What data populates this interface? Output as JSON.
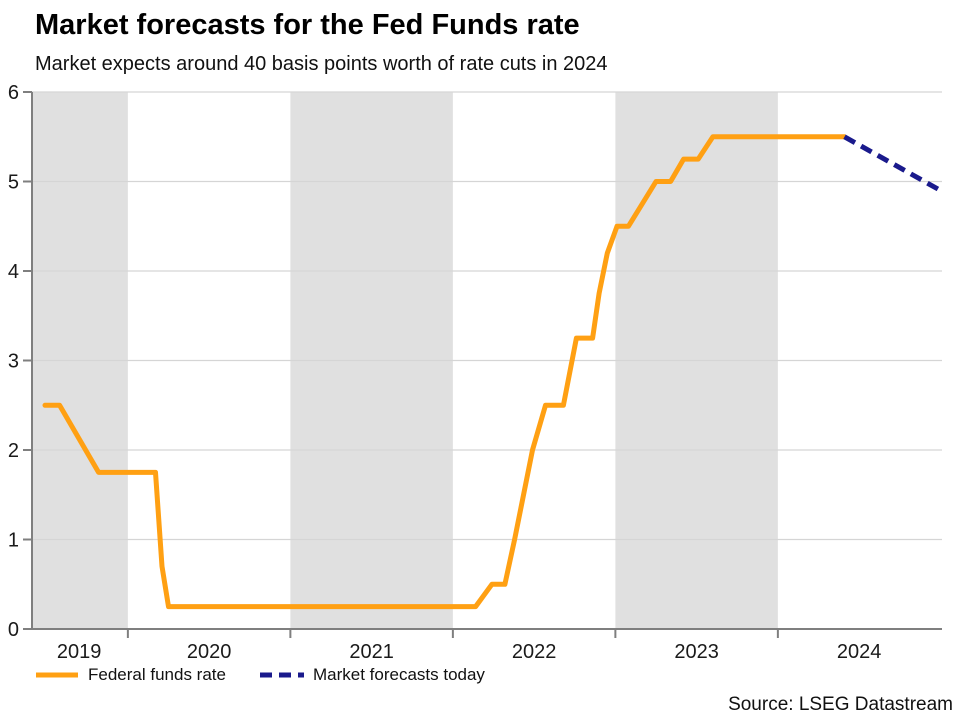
{
  "header": {
    "title": "Market forecasts for the Fed Funds rate",
    "subtitle": "Market expects around 40 basis points worth of rate cuts in 2024"
  },
  "legend": {
    "items": [
      {
        "label": "Federal funds rate",
        "color": "#FFA013",
        "dash": "none"
      },
      {
        "label": "Market forecasts today",
        "color": "#1A1A8C",
        "dash": "12 7"
      }
    ]
  },
  "footer": {
    "source": "Source: LSEG Datastream"
  },
  "chart_data": {
    "type": "line",
    "title": "Market forecasts for the Fed Funds rate",
    "subtitle": "Market expects around 40 basis points worth of rate cuts in 2024",
    "xlabel": "",
    "ylabel": "",
    "xlim": [
      2019.41,
      2025.01
    ],
    "ylim": [
      0,
      6
    ],
    "yticks": [
      0,
      1,
      2,
      3,
      4,
      5,
      6
    ],
    "xticks": [
      2020,
      2021,
      2022,
      2023,
      2024
    ],
    "year_labels": [
      {
        "label": "2019",
        "x": 2019.7
      },
      {
        "label": "2020",
        "x": 2020.5
      },
      {
        "label": "2021",
        "x": 2021.5
      },
      {
        "label": "2022",
        "x": 2022.5
      },
      {
        "label": "2023",
        "x": 2023.5
      },
      {
        "label": "2024",
        "x": 2024.5
      }
    ],
    "shaded_bands": [
      [
        2019.41,
        2020
      ],
      [
        2021,
        2022
      ],
      [
        2023,
        2024
      ]
    ],
    "grid": true,
    "legend_position": "bottom-left",
    "colors": {
      "band": "#E0E0E0",
      "grid": "#D5D5D5",
      "axis": "#7F7F7F",
      "tick_label": "#1A1A1A"
    },
    "series": [
      {
        "name": "Federal funds rate",
        "color": "#FFA013",
        "style": "solid",
        "dash": "",
        "width": 5,
        "points": [
          [
            2019.49,
            2.5
          ],
          [
            2019.58,
            2.5
          ],
          [
            2019.82,
            1.75
          ],
          [
            2020.17,
            1.75
          ],
          [
            2020.21,
            0.7
          ],
          [
            2020.25,
            0.25
          ],
          [
            2022.14,
            0.25
          ],
          [
            2022.24,
            0.5
          ],
          [
            2022.32,
            0.5
          ],
          [
            2022.38,
            1.0
          ],
          [
            2022.49,
            2.0
          ],
          [
            2022.57,
            2.5
          ],
          [
            2022.68,
            2.5
          ],
          [
            2022.76,
            3.25
          ],
          [
            2022.86,
            3.25
          ],
          [
            2022.9,
            3.75
          ],
          [
            2022.95,
            4.2
          ],
          [
            2023.01,
            4.5
          ],
          [
            2023.08,
            4.5
          ],
          [
            2023.25,
            5.0
          ],
          [
            2023.34,
            5.0
          ],
          [
            2023.42,
            5.25
          ],
          [
            2023.51,
            5.25
          ],
          [
            2023.6,
            5.5
          ],
          [
            2024.41,
            5.5
          ]
        ]
      },
      {
        "name": "Market forecasts today",
        "color": "#1A1A8C",
        "style": "dashed",
        "dash": "12 7",
        "width": 5,
        "points": [
          [
            2024.41,
            5.5
          ],
          [
            2025.0,
            4.9
          ]
        ]
      }
    ]
  }
}
